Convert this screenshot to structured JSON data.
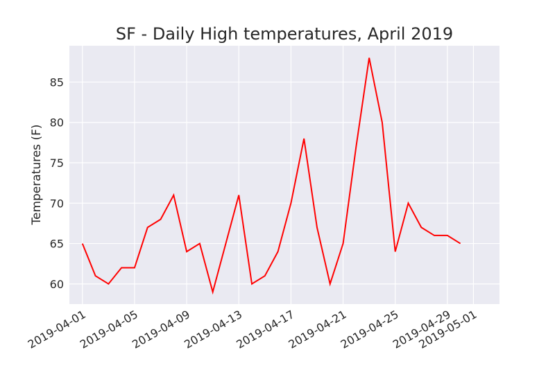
{
  "chart_data": {
    "type": "line",
    "title": "SF - Daily High temperatures, April 2019",
    "xlabel": "",
    "ylabel": "Temperatures (F)",
    "xlim": [
      "2019-03-31",
      "2019-05-03"
    ],
    "ylim": [
      57.5,
      89.5
    ],
    "grid": true,
    "x_ticks": [
      "2019-04-01",
      "2019-04-05",
      "2019-04-09",
      "2019-04-13",
      "2019-04-17",
      "2019-04-21",
      "2019-04-25",
      "2019-04-29",
      "2019-05-01"
    ],
    "y_ticks": [
      60,
      65,
      70,
      75,
      80,
      85
    ],
    "series": [
      {
        "color": "#ff0000",
        "x": [
          "2019-04-01",
          "2019-04-02",
          "2019-04-03",
          "2019-04-04",
          "2019-04-05",
          "2019-04-06",
          "2019-04-07",
          "2019-04-08",
          "2019-04-09",
          "2019-04-10",
          "2019-04-11",
          "2019-04-12",
          "2019-04-13",
          "2019-04-14",
          "2019-04-15",
          "2019-04-16",
          "2019-04-17",
          "2019-04-18",
          "2019-04-19",
          "2019-04-20",
          "2019-04-21",
          "2019-04-22",
          "2019-04-23",
          "2019-04-24",
          "2019-04-25",
          "2019-04-26",
          "2019-04-27",
          "2019-04-28",
          "2019-04-29",
          "2019-04-30"
        ],
        "values": [
          65,
          61,
          60,
          62,
          62,
          67,
          68,
          71,
          64,
          65,
          59,
          65,
          71,
          60,
          61,
          64,
          70,
          78,
          67,
          60,
          65,
          77,
          88,
          80,
          64,
          70,
          67,
          66,
          66,
          65
        ]
      }
    ]
  }
}
